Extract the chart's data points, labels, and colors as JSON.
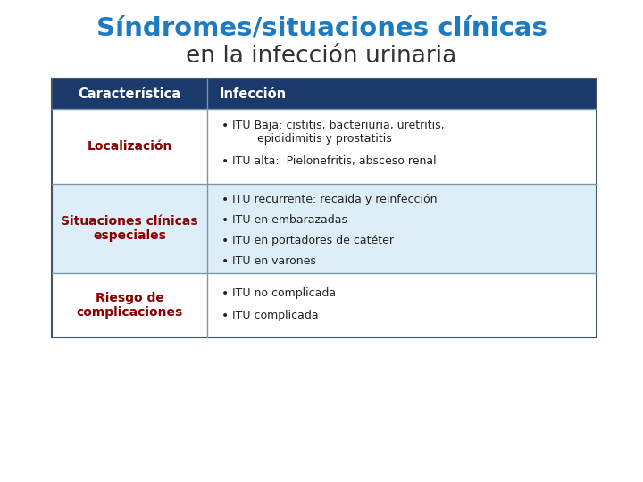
{
  "title_line1": "Síndromes/situaciones clínicas",
  "title_line2": "en la infección urinaria",
  "title_color1": "#1e7bbf",
  "title_color2": "#333333",
  "header_bg": "#1a3a6b",
  "header_text_color": "#ffffff",
  "header_col1": "Característica",
  "header_col2": "Infección",
  "row_label_color": "#8b0000",
  "row_text_color": "#222222",
  "line_color": "#7799aa",
  "border_color": "#445566",
  "rows": [
    {
      "label": "Localización",
      "bullet_lines": [
        [
          "ITU Baja: cistitis, bacteriuria, uretritis,",
          "     epididimitis y prostatitis"
        ],
        [
          "ITU alta:  Pielonefritis, absceso renal"
        ]
      ],
      "bg": "#ffffff"
    },
    {
      "label": "Situaciones clínicas\nespeciales",
      "bullet_lines": [
        [
          "ITU recurrente: recaída y reinfección"
        ],
        [
          "ITU en embarazadas"
        ],
        [
          "ITU en portadores de catéter"
        ],
        [
          "ITU en varones"
        ]
      ],
      "bg": "#ddeef8"
    },
    {
      "label": "Riesgo de\ncomplicaciones",
      "bullet_lines": [
        [
          "ITU no complicada"
        ],
        [
          "ITU complicada"
        ]
      ],
      "bg": "#ffffff"
    }
  ],
  "fig_width": 7.2,
  "fig_height": 5.4,
  "dpi": 100
}
